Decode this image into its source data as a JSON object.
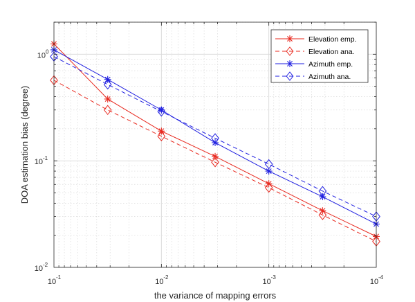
{
  "chart_data": {
    "type": "line",
    "title": "",
    "xlabel": "the variance of mapping errors",
    "ylabel": "DOA estimation bias (degree)",
    "xscale": "log",
    "yscale": "log",
    "x_direction": "reversed",
    "xlim": [
      0.1,
      0.0001
    ],
    "ylim": [
      0.01,
      2
    ],
    "x": [
      0.1,
      0.0316,
      0.01,
      0.00316,
      0.001,
      0.000316,
      0.0001
    ],
    "x_ticks": [
      {
        "value": 0.1,
        "base": "10",
        "exp": "-1"
      },
      {
        "value": 0.01,
        "base": "10",
        "exp": "-2"
      },
      {
        "value": 0.001,
        "base": "10",
        "exp": "-3"
      },
      {
        "value": 0.0001,
        "base": "10",
        "exp": "-4"
      }
    ],
    "y_ticks": [
      {
        "value": 1,
        "base": "10",
        "exp": "0"
      },
      {
        "value": 0.1,
        "base": "10",
        "exp": "-1"
      },
      {
        "value": 0.01,
        "base": "10",
        "exp": "-2"
      }
    ],
    "grid": true,
    "legend_position": "top-right",
    "series": [
      {
        "name": "Elevation emp.",
        "color": "#e8281e",
        "dash": "solid",
        "marker": "asterisk",
        "values": [
          1.25,
          0.38,
          0.19,
          0.11,
          0.061,
          0.034,
          0.0195
        ]
      },
      {
        "name": "Elevation ana.",
        "color": "#e8281e",
        "dash": "dashed",
        "marker": "diamond",
        "values": [
          0.57,
          0.3,
          0.17,
          0.097,
          0.056,
          0.031,
          0.0175
        ]
      },
      {
        "name": "Azimuth emp.",
        "color": "#1e1ee0",
        "dash": "solid",
        "marker": "asterisk",
        "values": [
          1.1,
          0.58,
          0.3,
          0.148,
          0.08,
          0.046,
          0.0255
        ]
      },
      {
        "name": "Azimuth ana.",
        "color": "#1e1ee0",
        "dash": "dashed",
        "marker": "diamond",
        "values": [
          0.95,
          0.52,
          0.29,
          0.163,
          0.093,
          0.052,
          0.03
        ]
      }
    ]
  }
}
